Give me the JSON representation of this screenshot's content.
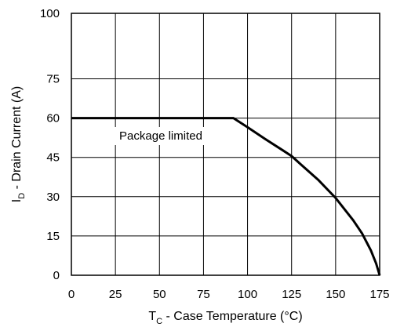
{
  "chart_data": {
    "type": "line",
    "xlabel": {
      "main": "T",
      "sub": "C",
      "rest": " - Case Temperature (°C)"
    },
    "ylabel": {
      "main": "I",
      "sub": "D",
      "rest": " - Drain Current (A)"
    },
    "xlim": [
      0,
      175
    ],
    "ylim": [
      0,
      100
    ],
    "x_ticks": [
      0,
      25,
      50,
      75,
      100,
      125,
      150,
      175
    ],
    "y_ticks": [
      0,
      15,
      30,
      45,
      60,
      75,
      100
    ],
    "grid": true,
    "annotation": "Package limited",
    "series": [
      {
        "x": [
          0,
          92,
          100,
          110,
          120,
          125,
          130,
          140,
          150,
          160,
          165,
          170,
          173,
          175
        ],
        "y": [
          60,
          60,
          56.5,
          52,
          47.7,
          45.5,
          42.5,
          36.5,
          29.5,
          21,
          16,
          9.5,
          4.5,
          0
        ]
      }
    ]
  }
}
